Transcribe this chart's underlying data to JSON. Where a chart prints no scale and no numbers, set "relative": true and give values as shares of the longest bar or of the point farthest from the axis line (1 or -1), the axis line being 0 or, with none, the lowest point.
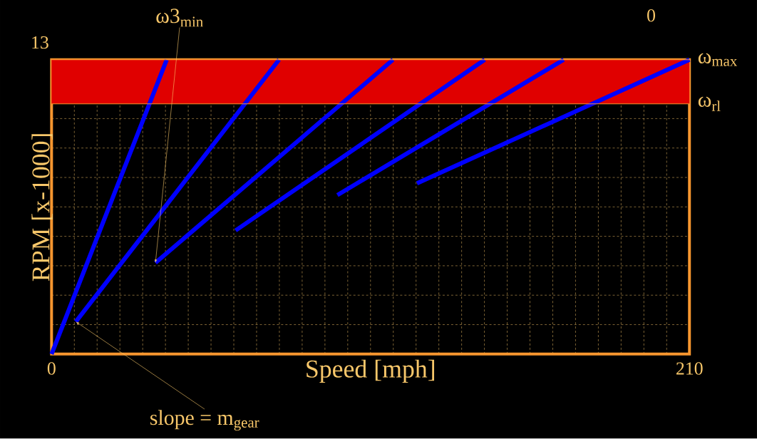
{
  "chart_data": {
    "type": "line",
    "relative": true,
    "xlabel": "Speed [mph]",
    "ylabel": "RPM [x-1000]",
    "xlim": [
      0,
      210
    ],
    "xticks": [
      0,
      {
        "value": 7.5,
        "label": null
      },
      {
        "value": 15,
        "label": null
      },
      {
        "value": 22.5,
        "label": null
      },
      {
        "value": 30,
        "label": null
      },
      {
        "value": 37.5,
        "label": null
      },
      {
        "value": 45,
        "label": null
      },
      {
        "value": 52.5,
        "label": null
      },
      {
        "value": 60,
        "label": null
      },
      {
        "value": 67.5,
        "label": null
      },
      {
        "value": 75,
        "label": null
      },
      {
        "value": 82.5,
        "label": null
      },
      {
        "value": 90,
        "label": null
      },
      {
        "value": 97.5,
        "label": null
      },
      {
        "value": 105,
        "label": null
      },
      {
        "value": 112.5,
        "label": null
      },
      {
        "value": 120,
        "label": null
      },
      {
        "value": 127.5,
        "label": null
      },
      {
        "value": 135,
        "label": null
      },
      {
        "value": 142.5,
        "label": null
      },
      {
        "value": 150,
        "label": null
      },
      {
        "value": 157.5,
        "label": null
      },
      {
        "value": 165,
        "label": null
      },
      {
        "value": 172.5,
        "label": null
      },
      {
        "value": 180,
        "label": null
      },
      {
        "value": 187.5,
        "label": null
      },
      {
        "value": 195,
        "label": null
      },
      {
        "value": 202.5,
        "label": null
      },
      210
    ],
    "grid": true,
    "marker": "none",
    "line_style": "solid",
    "series": [
      {
        "color": "#0000ff",
        "x": [
          0,
          37.9
        ],
        "values": [
          0,
          1
        ]
      },
      {
        "color": "#0000ff",
        "x": [
          8,
          74.9
        ],
        "values": [
          0.11,
          1
        ]
      },
      {
        "color": "#0000ff",
        "x": [
          34.2,
          112.4
        ],
        "values": [
          0.31,
          1
        ]
      },
      {
        "color": "#0000ff",
        "x": [
          60.6,
          142.6
        ],
        "values": [
          0.42,
          1
        ]
      },
      {
        "color": "#0000ff",
        "x": [
          94.1,
          168.6
        ],
        "values": [
          0.54,
          1
        ]
      },
      {
        "color": "#0000ff",
        "x": [
          120.3,
          210
        ],
        "values": [
          0.58,
          1
        ]
      }
    ],
    "bands": [
      {
        "axis": "y",
        "from": 0.85,
        "to": 1,
        "color": "#e00000"
      }
    ],
    "ref_lines": [
      {
        "axis": "y",
        "value": 1,
        "label": "ω$_{max}$",
        "color": "#f7962f"
      },
      {
        "axis": "y",
        "value": 0.85,
        "label": "ω$_{rl}$",
        "color": "#f7962f"
      }
    ],
    "annotations": [
      {
        "text": "ω3$_{min}$",
        "x": 34.2,
        "y": 0.31
      },
      {
        "text": "slope = m$_{gear}$",
        "x": 8,
        "y": 0.11
      },
      "13",
      "0"
    ]
  }
}
